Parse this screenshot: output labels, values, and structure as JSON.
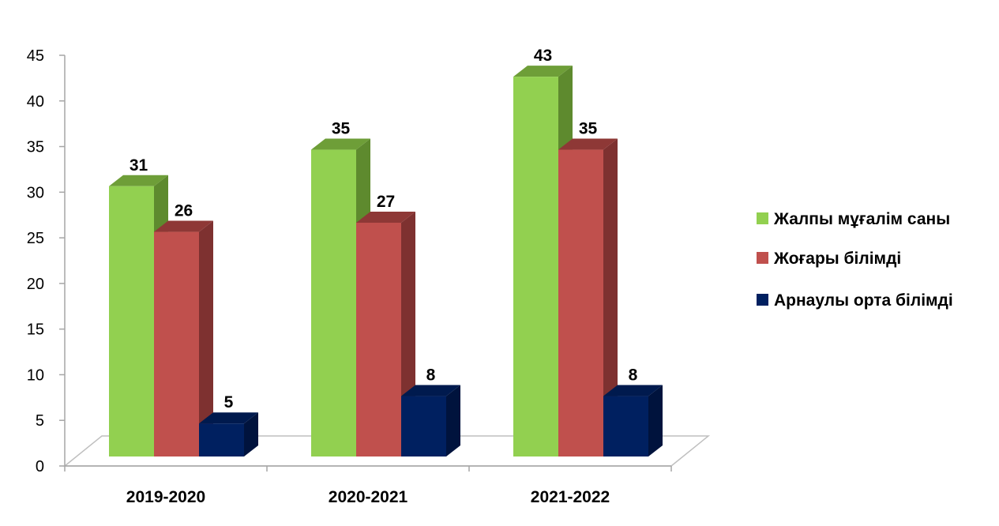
{
  "chart_data": {
    "type": "bar",
    "style": "3d-clustered-column",
    "categories": [
      "2019-2020",
      "2020-2021",
      "2021-2022"
    ],
    "series": [
      {
        "name": "Жалпы мұғалім саны",
        "values": [
          31,
          35,
          43
        ],
        "color": "#92D050",
        "side_color": "#5E8A2E",
        "top_color": "#6E9E38"
      },
      {
        "name": "Жоғары білімді",
        "values": [
          26,
          27,
          35
        ],
        "color": "#C0504D",
        "side_color": "#7E3130",
        "top_color": "#8E3836"
      },
      {
        "name": "Арнаулы орта білімді",
        "values": [
          5,
          8,
          8
        ],
        "color": "#002060",
        "side_color": "#00133D",
        "top_color": "#001A4E"
      }
    ],
    "ylim": [
      0,
      45
    ],
    "yticks": [
      "0",
      "5",
      "10",
      "15",
      "20",
      "25",
      "30",
      "35",
      "40",
      "45"
    ],
    "data_labels": true,
    "grid": false,
    "legend_position": "right",
    "title": "",
    "xlabel": "",
    "ylabel": ""
  }
}
